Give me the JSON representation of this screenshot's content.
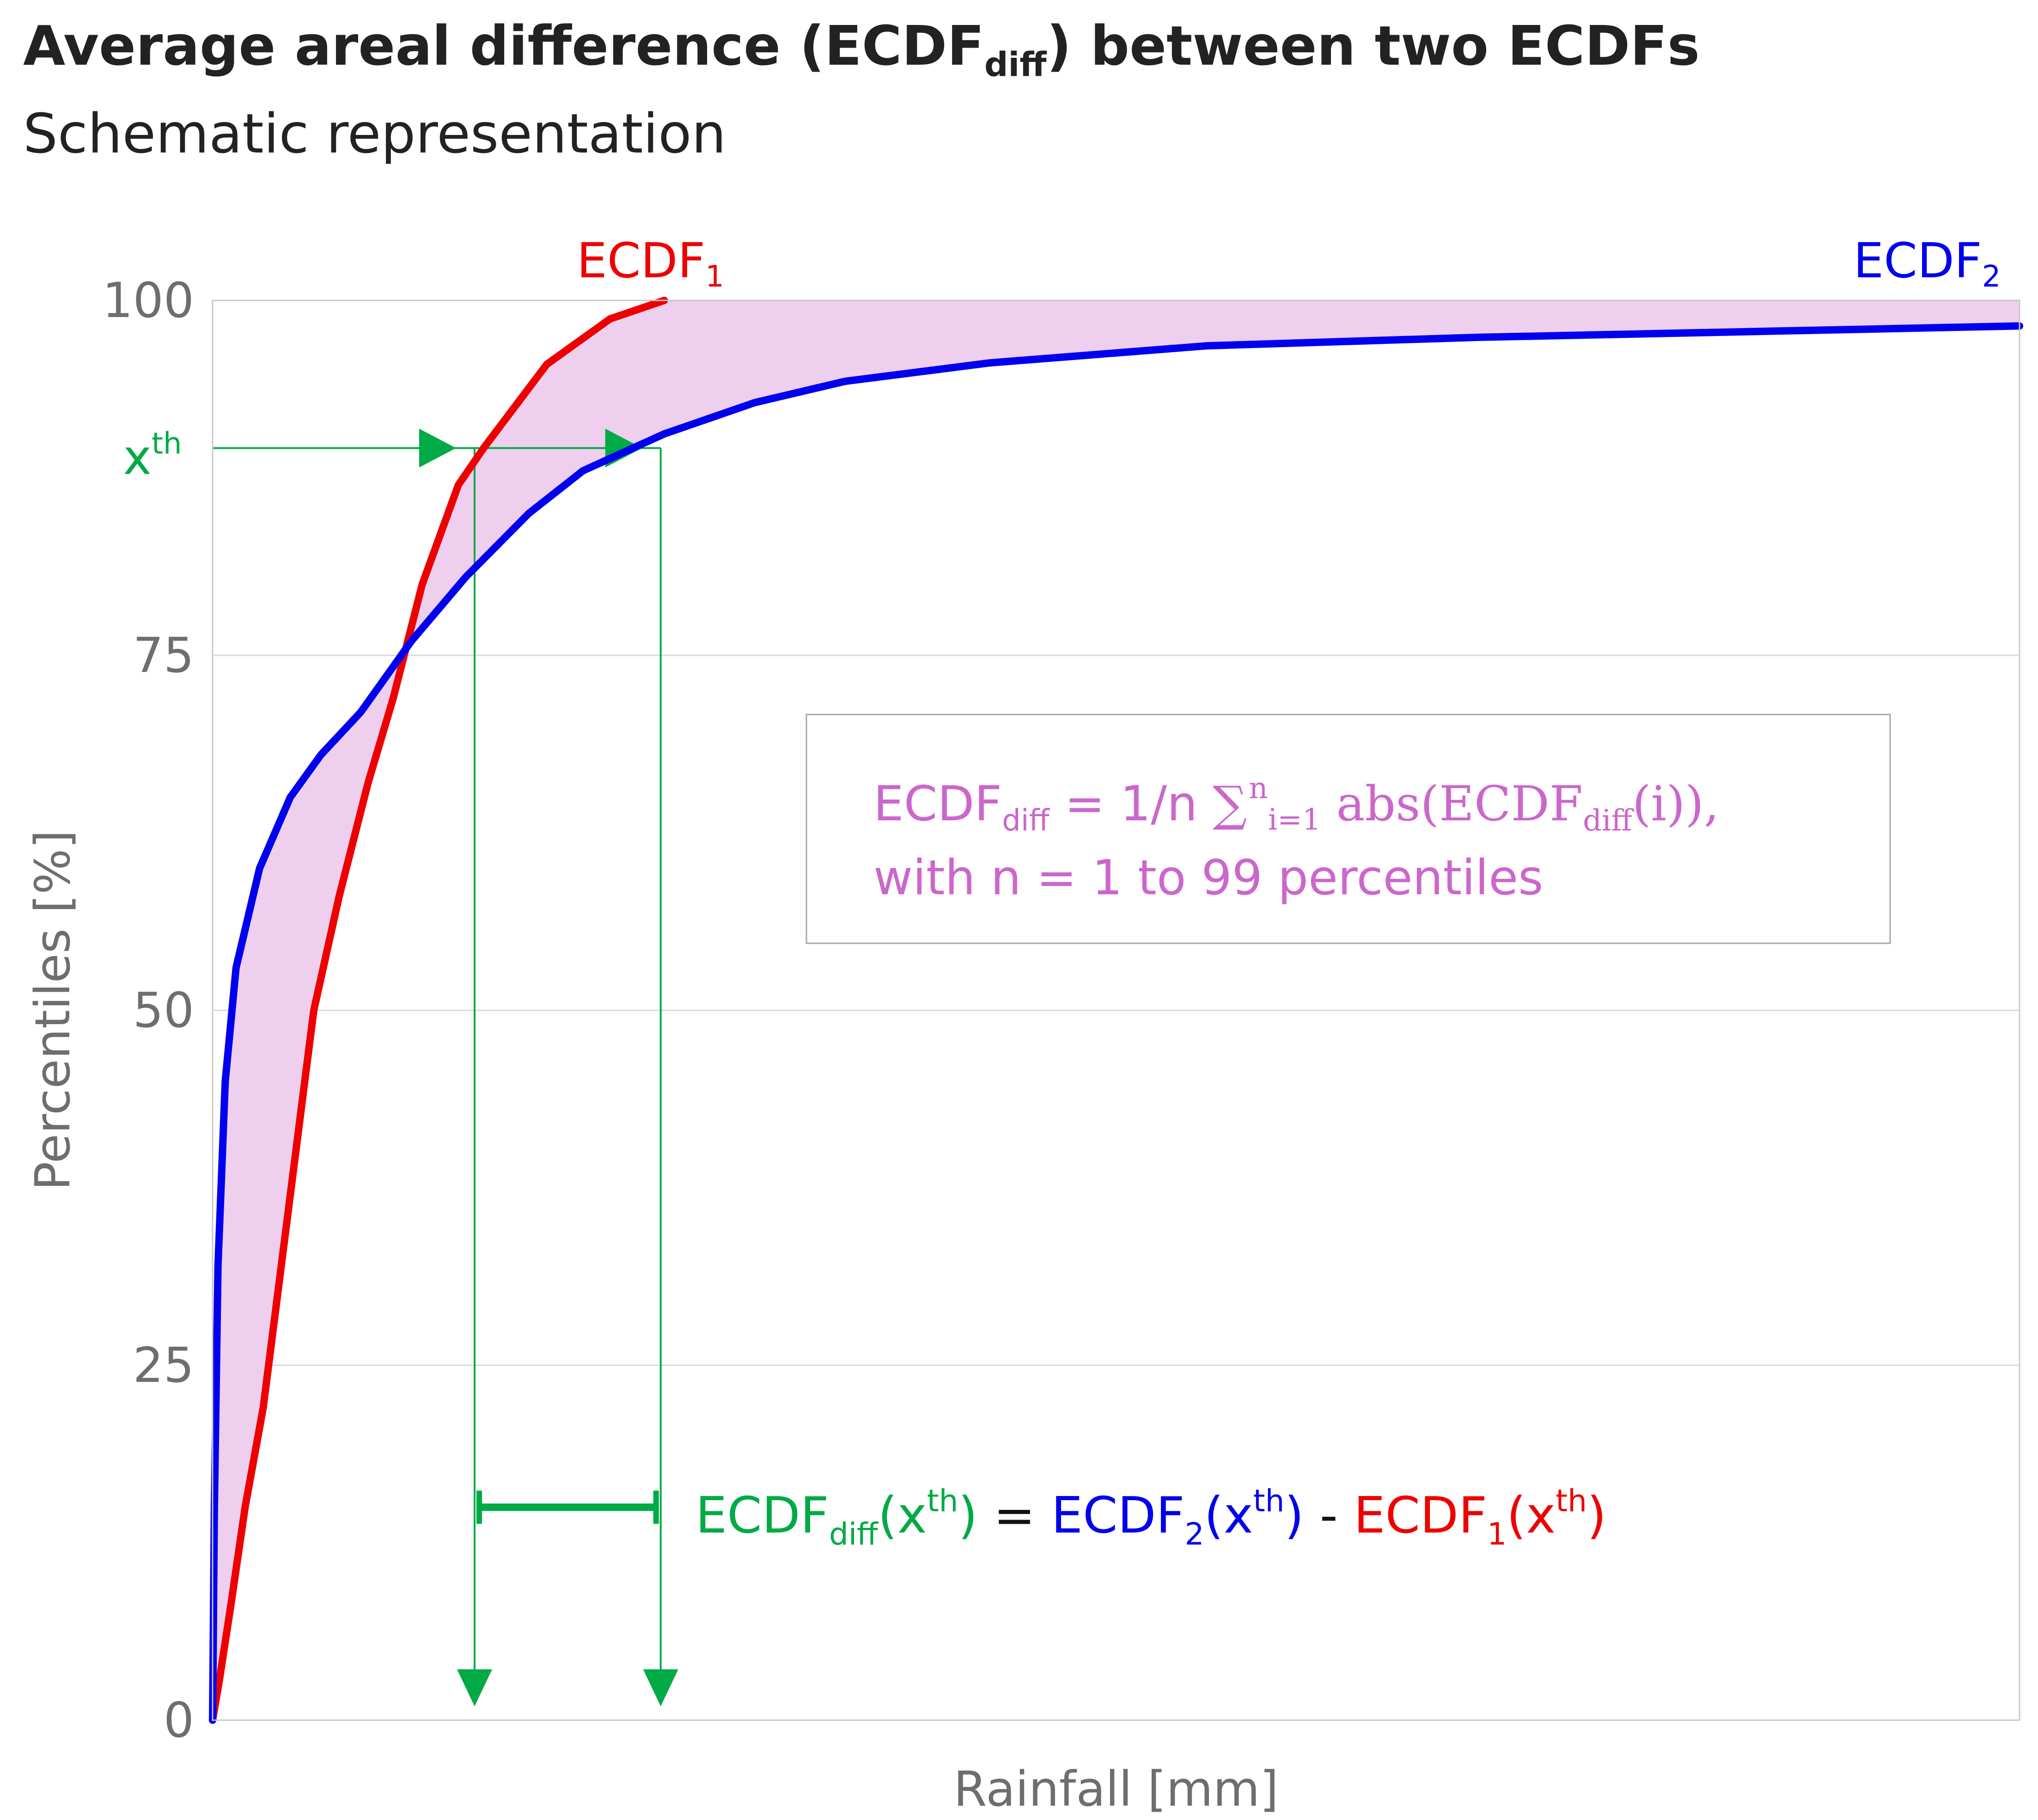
{
  "title": {
    "main": "Average areal difference (ECDF",
    "sub": "diff",
    "tail": ") between two ECDFs"
  },
  "subtitle": "Schematic representation",
  "colors": {
    "ecdf1": "#ee0000",
    "ecdf2": "#0000ee",
    "area": "#eecfee",
    "marker": "#00aa44",
    "formula": "#cc66cc",
    "grid": "#d9d9d9",
    "axis_text": "#6e6e6e"
  },
  "chart_data": {
    "type": "line",
    "title": "Average areal difference (ECDFdiff) between two ECDFs",
    "subtitle": "Schematic representation",
    "xlabel": "Rainfall [mm]",
    "ylabel": "Percentiles [%]",
    "ylim": [
      0,
      100
    ],
    "xlim": [
      0,
      100
    ],
    "x_ticks_shown": false,
    "y_ticks": [
      "0",
      "25",
      "50",
      "75",
      "100"
    ],
    "grid": "horizontal",
    "shaded_area_between_series": true,
    "series": [
      {
        "name": "ECDF",
        "name_sub": "1",
        "color": "#ee0000",
        "points": [
          [
            0,
            0
          ],
          [
            0.4,
            3
          ],
          [
            1,
            8
          ],
          [
            1.8,
            15
          ],
          [
            2.8,
            22
          ],
          [
            3.6,
            30
          ],
          [
            4.6,
            40
          ],
          [
            5.6,
            50
          ],
          [
            7,
            58
          ],
          [
            8.6,
            66
          ],
          [
            10,
            72
          ],
          [
            11.6,
            80
          ],
          [
            13.6,
            87
          ],
          [
            15,
            89.6
          ],
          [
            18.5,
            95.5
          ],
          [
            22,
            98.7
          ],
          [
            25,
            100
          ]
        ]
      },
      {
        "name": "ECDF",
        "name_sub": "2",
        "color": "#0000ee",
        "points": [
          [
            0,
            0
          ],
          [
            0.1,
            15
          ],
          [
            0.3,
            32
          ],
          [
            0.7,
            45
          ],
          [
            1.3,
            53
          ],
          [
            2.6,
            60
          ],
          [
            4.3,
            65
          ],
          [
            6,
            68
          ],
          [
            8.2,
            71
          ],
          [
            11,
            76
          ],
          [
            14,
            80.5
          ],
          [
            17.5,
            85
          ],
          [
            20.5,
            88
          ],
          [
            25,
            90.6
          ],
          [
            30,
            92.8
          ],
          [
            35,
            94.3
          ],
          [
            43,
            95.6
          ],
          [
            55,
            96.8
          ],
          [
            70,
            97.4
          ],
          [
            85,
            97.8
          ],
          [
            100,
            98.2
          ]
        ]
      }
    ],
    "annotations": {
      "xth_label": "x",
      "xth_sup": "th",
      "xth_percentile": 89.6,
      "xth_x_ecdf1": 14.5,
      "xth_x_ecdf2": 24.8
    }
  },
  "difference_equation": {
    "green": "ECDF",
    "green_sub": "diff",
    "green_arg": "(x",
    "sup": "th",
    "close": ")",
    "equals": " = ",
    "blue": "ECDF",
    "blue_sub": "2",
    "blue_arg": "(x",
    "minus": " - ",
    "red": "ECDF",
    "red_sub": "1",
    "red_arg": "(x"
  },
  "formula_box": {
    "lhs": "ECDF",
    "lhs_sub": "diff",
    "eq": " = 1/n ",
    "sum": "∑",
    "sum_sup": "n",
    "sum_sub": "i=1",
    "abs_open": " abs(ECDF",
    "abs_sub": "diff",
    "abs_close": "(i)),",
    "line2": "with n = 1 to 99 percentiles"
  }
}
